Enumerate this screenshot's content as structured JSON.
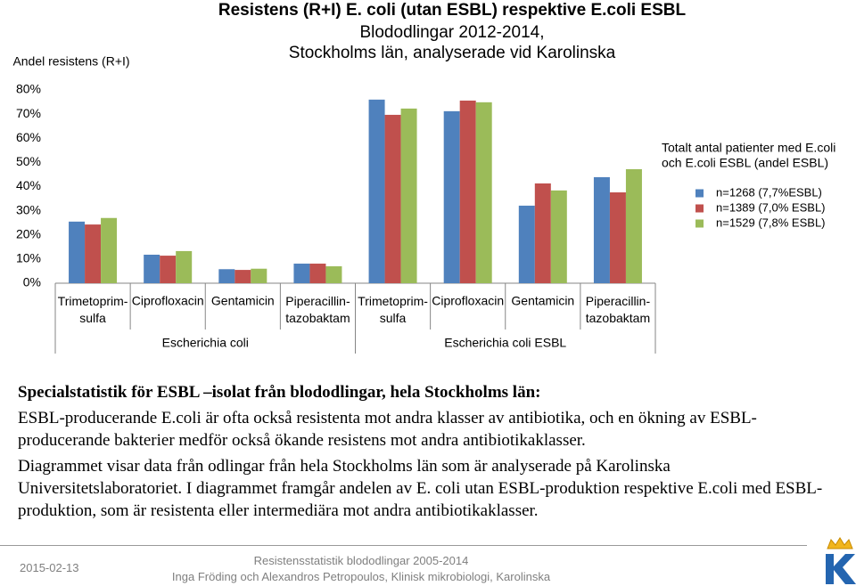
{
  "chart_data": {
    "type": "bar",
    "title": [
      "Resistens (R+I) E. coli (utan ESBL) respektive E.coli ESBL",
      "Blododlingar 2012-2014,",
      "Stockholms län, analyserade vid Karolinska"
    ],
    "y_label": "Andel resistens (R+I)",
    "categories": [
      "Trimetoprim-sulfa",
      "Ciprofloxacin",
      "Gentamicin",
      "Piperacillin-tazobaktam",
      "Trimetoprim-sulfa",
      "Ciprofloxacin",
      "Gentamicin",
      "Piperacillin-tazobaktam"
    ],
    "category_groups": [
      "Escherichia coli",
      "Escherichia coli ESBL"
    ],
    "legend_title": [
      "Totalt antal patienter med E.coli",
      "och E.coli ESBL (andel ESBL)"
    ],
    "series": [
      {
        "name": "n=1268 (7,7%ESBL)",
        "color": "#4f81bd",
        "values": [
          25.5,
          11.8,
          5.8,
          8.1,
          76,
          71.2,
          32.1,
          43.9
        ]
      },
      {
        "name": "n=1389 (7,0% ESBL)",
        "color": "#c0504d",
        "values": [
          24.3,
          11.4,
          5.5,
          8.1,
          69.7,
          75.6,
          41.3,
          37.6
        ]
      },
      {
        "name": "n=1529 (7,8% ESBL)",
        "color": "#9bbb59",
        "values": [
          27,
          13.3,
          6,
          7,
          72.3,
          74.9,
          38.4,
          47.2
        ]
      }
    ],
    "ylim": [
      0,
      80
    ],
    "yticks": [
      {
        "value": 0,
        "label": "0%"
      },
      {
        "value": 10,
        "label": "10%"
      },
      {
        "value": 20,
        "label": "20%"
      },
      {
        "value": 30,
        "label": "30%"
      },
      {
        "value": 40,
        "label": "40%"
      },
      {
        "value": 50,
        "label": "50%"
      },
      {
        "value": 60,
        "label": "60%"
      },
      {
        "value": 70,
        "label": "70%"
      },
      {
        "value": 80,
        "label": "80%"
      }
    ],
    "grid": false
  },
  "text": {
    "heading": "Specialstatistik för ESBL –isolat från blododlingar, hela Stockholms län:",
    "paragraphs": [
      "ESBL-producerande E.coli  är ofta också resistenta mot andra klasser av antibiotika, och en ökning av ESBL-producerande bakterier medför också ökande resistens mot andra antibiotikaklasser.",
      "Diagrammet visar  data från odlingar från hela Stockholms län som är analyserade på Karolinska Universitetslaboratoriet. I diagrammet framgår andelen av E. coli utan ESBL-produktion respektive E.coli med ESBL-produktion, som är resistenta eller intermediära mot andra antibiotikaklasser."
    ]
  },
  "footer": {
    "date": "2015-02-13",
    "title": "Resistensstatistik blododlingar 2005-2014",
    "authors": "Inga Fröding och Alexandros Petropoulos, Klinisk mikrobiologi, Karolinska"
  }
}
